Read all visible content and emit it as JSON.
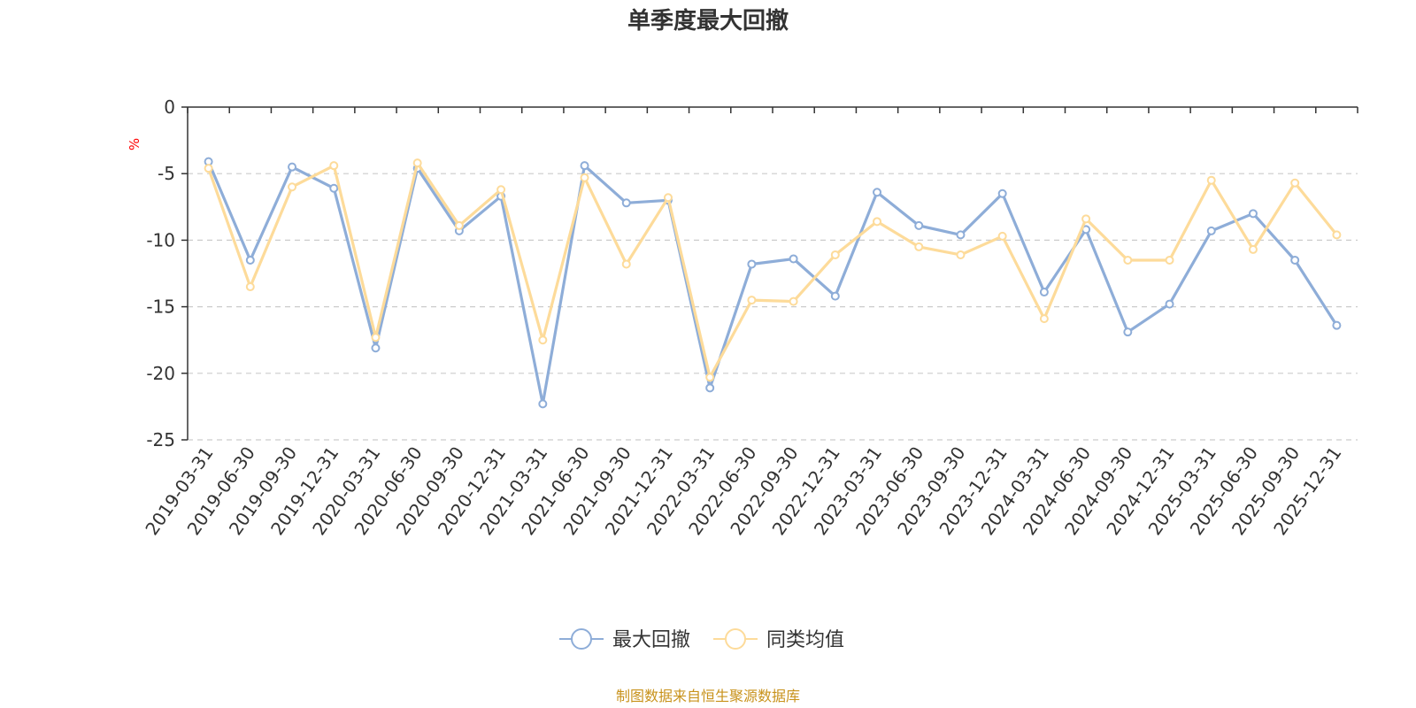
{
  "chart_data": {
    "type": "line",
    "title": "单季度最大回撤",
    "ylabel": "%",
    "xlabel": "",
    "ylim": [
      -25,
      0
    ],
    "yticks": [
      0,
      -5,
      -10,
      -15,
      -20,
      -25
    ],
    "grid": true,
    "legend_position": "bottom",
    "categories": [
      "2019-03-31",
      "2019-06-30",
      "2019-09-30",
      "2019-12-31",
      "2020-03-31",
      "2020-06-30",
      "2020-09-30",
      "2020-12-31",
      "2021-03-31",
      "2021-06-30",
      "2021-09-30",
      "2021-12-31",
      "2022-03-31",
      "2022-06-30",
      "2022-09-30",
      "2022-12-31",
      "2023-03-31",
      "2023-06-30",
      "2023-09-30",
      "2023-12-31",
      "2024-03-31",
      "2024-06-30",
      "2024-09-30",
      "2024-12-31",
      "2025-03-31",
      "2025-06-30",
      "2025-09-30",
      "2025-12-31"
    ],
    "series": [
      {
        "name": "最大回撤",
        "color": "#8eadd8",
        "values": [
          -4.1,
          -11.5,
          -4.5,
          -6.1,
          -18.1,
          -4.6,
          -9.3,
          -6.7,
          -22.3,
          -4.4,
          -7.2,
          -7.0,
          -21.1,
          -11.8,
          -11.4,
          -14.2,
          -6.4,
          -8.9,
          -9.6,
          -6.5,
          -13.9,
          -9.2,
          -16.9,
          -14.8,
          -9.3,
          -8.0,
          -11.5,
          -16.4
        ]
      },
      {
        "name": "同类均值",
        "color": "#fddb9a",
        "values": [
          -4.6,
          -13.5,
          -6.0,
          -4.4,
          -17.3,
          -4.2,
          -8.9,
          -6.2,
          -17.5,
          -5.3,
          -11.8,
          -6.8,
          -20.3,
          -14.5,
          -14.6,
          -11.1,
          -8.6,
          -10.5,
          -11.1,
          -9.7,
          -15.9,
          -8.4,
          -11.5,
          -11.5,
          -5.5,
          -10.7,
          -5.7,
          -9.6
        ]
      }
    ],
    "source_note": "制图数据来自恒生聚源数据库"
  }
}
